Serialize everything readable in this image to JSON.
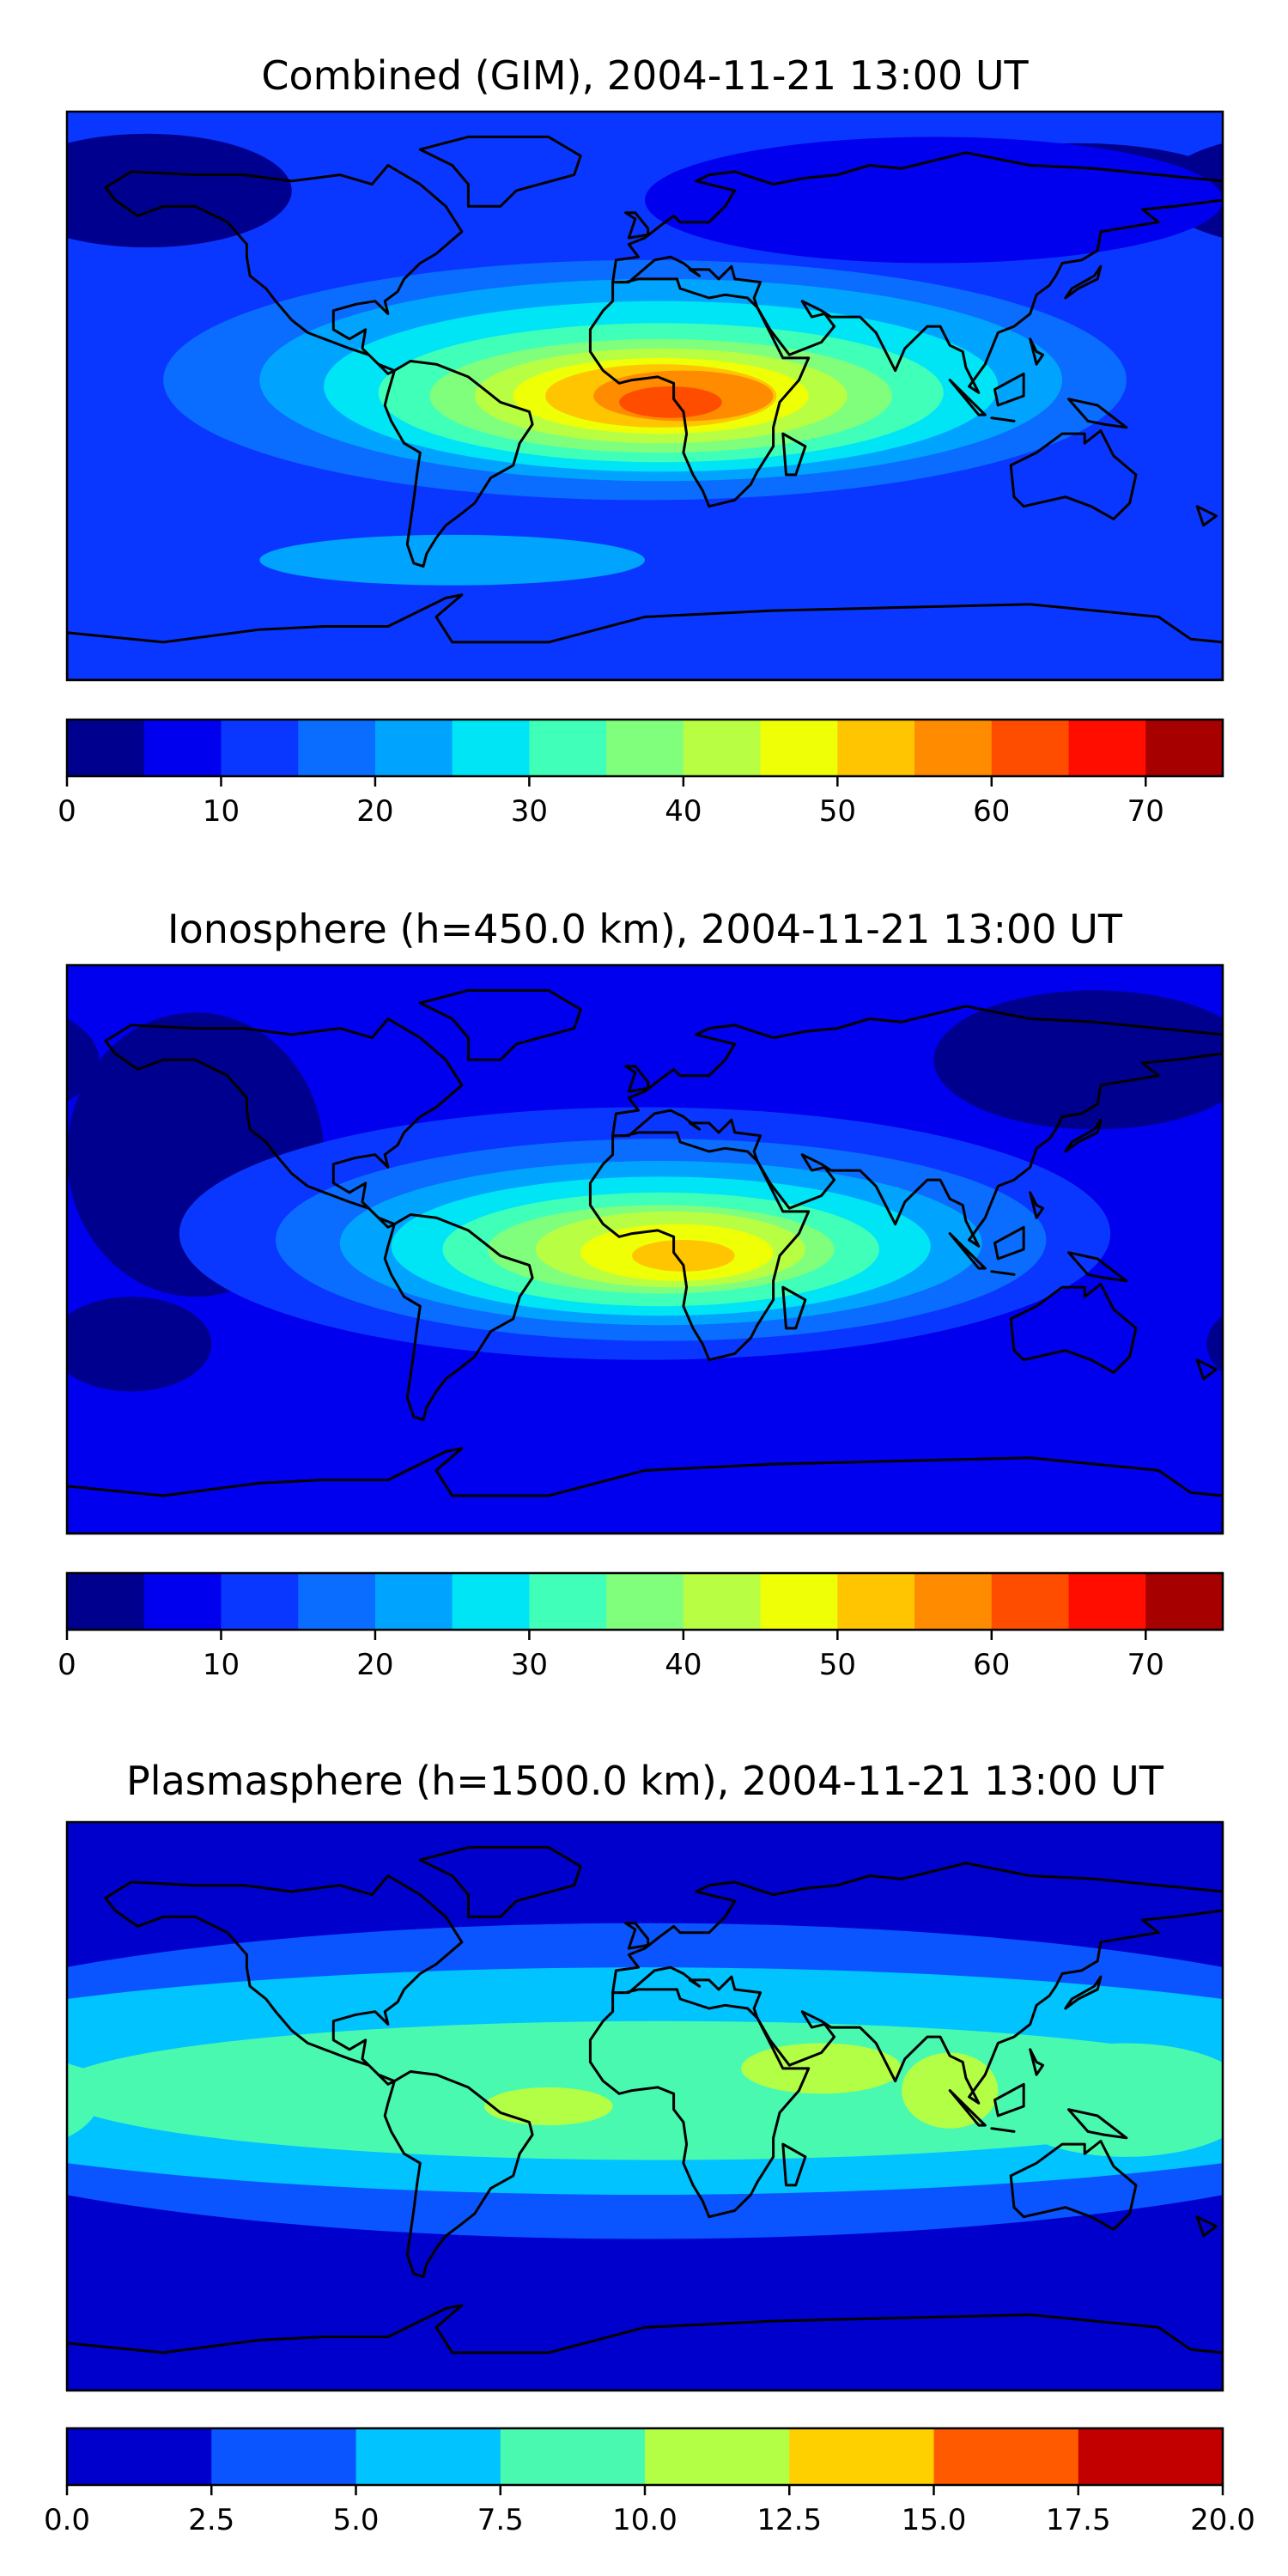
{
  "chart_data": [
    {
      "type": "heatmap",
      "title": "Combined (GIM), 2004-11-21 13:00 UT",
      "colorbar": {
        "levels": [
          0,
          5,
          10,
          15,
          20,
          25,
          30,
          35,
          40,
          45,
          50,
          55,
          60,
          65,
          70,
          75
        ],
        "colors": [
          "#00008f",
          "#0000ee",
          "#0a37ff",
          "#0a6dff",
          "#00a4ff",
          "#00e5f5",
          "#40ffb8",
          "#80ff7c",
          "#b8ff44",
          "#eeff06",
          "#ffc500",
          "#ff8b00",
          "#ff4d00",
          "#ff0e00",
          "#a60000"
        ],
        "ticks": [
          0,
          10,
          20,
          30,
          40,
          50,
          60,
          70
        ],
        "tick_labels": [
          "0",
          "10",
          "20",
          "30",
          "40",
          "50",
          "60",
          "70"
        ],
        "range": [
          0,
          75
        ]
      },
      "map": {
        "background_level": 10,
        "features": [
          {
            "level": 0,
            "lon": -155,
            "lat": 65,
            "rlon": 45,
            "rlat": 18
          },
          {
            "level": 0,
            "lon": 135,
            "lat": 65,
            "rlon": 50,
            "rlat": 15
          },
          {
            "level": 5,
            "lon": 90,
            "lat": 62,
            "rlon": 90,
            "rlat": 20
          },
          {
            "level": 20,
            "lon": -60,
            "lat": -52,
            "rlon": 60,
            "rlat": 8
          },
          {
            "level": 15,
            "lon": 0,
            "lat": 5,
            "rlon": 150,
            "rlat": 38
          },
          {
            "level": 20,
            "lon": 5,
            "lat": 5,
            "rlon": 125,
            "rlat": 32
          },
          {
            "level": 25,
            "lon": 5,
            "lat": 3,
            "rlon": 105,
            "rlat": 27
          },
          {
            "level": 30,
            "lon": 5,
            "lat": 1,
            "rlon": 88,
            "rlat": 22
          },
          {
            "level": 35,
            "lon": 5,
            "lat": 0,
            "rlon": 72,
            "rlat": 18
          },
          {
            "level": 40,
            "lon": 5,
            "lat": 0,
            "rlon": 58,
            "rlat": 15
          },
          {
            "level": 45,
            "lon": 5,
            "lat": 0,
            "rlon": 46,
            "rlat": 12
          },
          {
            "level": 50,
            "lon": 5,
            "lat": 0,
            "rlon": 36,
            "rlat": 10
          },
          {
            "level": 55,
            "lon": 12,
            "lat": 0,
            "rlon": 28,
            "rlat": 8
          },
          {
            "level": 60,
            "lon": 8,
            "lat": -2,
            "rlon": 16,
            "rlat": 5
          }
        ]
      }
    },
    {
      "type": "heatmap",
      "title": "Ionosphere  (h=450.0 km), 2004-11-21 13:00 UT",
      "colorbar": {
        "levels": [
          0,
          5,
          10,
          15,
          20,
          25,
          30,
          35,
          40,
          45,
          50,
          55,
          60,
          65,
          70,
          75
        ],
        "colors": [
          "#00008f",
          "#0000ee",
          "#0a37ff",
          "#0a6dff",
          "#00a4ff",
          "#00e5f5",
          "#40ffb8",
          "#80ff7c",
          "#b8ff44",
          "#eeff06",
          "#ffc500",
          "#ff8b00",
          "#ff4d00",
          "#ff0e00",
          "#a60000"
        ],
        "ticks": [
          0,
          10,
          20,
          30,
          40,
          50,
          60,
          70
        ],
        "tick_labels": [
          "0",
          "10",
          "20",
          "30",
          "40",
          "50",
          "60",
          "70"
        ],
        "range": [
          0,
          75
        ]
      },
      "map": {
        "background_level": 5,
        "features": [
          {
            "level": 0,
            "lon": -140,
            "lat": 30,
            "rlon": 40,
            "rlat": 45
          },
          {
            "level": 0,
            "lon": 140,
            "lat": 60,
            "rlon": 50,
            "rlat": 22
          },
          {
            "level": 0,
            "lon": -160,
            "lat": -30,
            "rlon": 25,
            "rlat": 15
          },
          {
            "level": 10,
            "lon": 0,
            "lat": 5,
            "rlon": 145,
            "rlat": 40
          },
          {
            "level": 15,
            "lon": 5,
            "lat": 3,
            "rlon": 120,
            "rlat": 32
          },
          {
            "level": 20,
            "lon": 5,
            "lat": 2,
            "rlon": 100,
            "rlat": 26
          },
          {
            "level": 25,
            "lon": 5,
            "lat": 1,
            "rlon": 84,
            "rlat": 22
          },
          {
            "level": 30,
            "lon": 5,
            "lat": 0,
            "rlon": 68,
            "rlat": 18
          },
          {
            "level": 35,
            "lon": 5,
            "lat": 0,
            "rlon": 54,
            "rlat": 14
          },
          {
            "level": 40,
            "lon": 8,
            "lat": 0,
            "rlon": 42,
            "rlat": 12
          },
          {
            "level": 45,
            "lon": 10,
            "lat": -1,
            "rlon": 30,
            "rlat": 9
          },
          {
            "level": 50,
            "lon": 12,
            "lat": -2,
            "rlon": 16,
            "rlat": 5
          }
        ]
      }
    },
    {
      "type": "heatmap",
      "title": "Plasmasphere (h=1500.0 km), 2004-11-21 13:00 UT",
      "colorbar": {
        "levels": [
          0.0,
          2.5,
          5.0,
          7.5,
          10.0,
          12.5,
          15.0,
          17.5,
          20.0
        ],
        "colors": [
          "#0000cd",
          "#0a55ff",
          "#00c3ff",
          "#49f9b0",
          "#b2ff46",
          "#ffd000",
          "#ff5a00",
          "#c20000"
        ],
        "ticks": [
          0.0,
          2.5,
          5.0,
          7.5,
          10.0,
          12.5,
          15.0,
          17.5,
          20.0
        ],
        "tick_labels": [
          "0.0",
          "2.5",
          "5.0",
          "7.5",
          "10.0",
          "12.5",
          "15.0",
          "17.5",
          "20.0"
        ],
        "range": [
          0,
          20
        ]
      },
      "map": {
        "background_level": 0,
        "features": [
          {
            "level": 2.5,
            "lon": 0,
            "lat": 8,
            "rlon": 260,
            "rlat": 50
          },
          {
            "level": 5,
            "lon": 0,
            "lat": 8,
            "rlon": 260,
            "rlat": 36
          },
          {
            "level": 7.5,
            "lon": 5,
            "lat": 5,
            "rlon": 190,
            "rlat": 22
          },
          {
            "level": 7.5,
            "lon": 150,
            "lat": 2,
            "rlon": 40,
            "rlat": 18
          },
          {
            "level": 0,
            "lon": 80,
            "lat": -45,
            "rlon": 30,
            "rlat": 5
          },
          {
            "level": 10,
            "lon": -30,
            "lat": 0,
            "rlon": 20,
            "rlat": 6
          },
          {
            "level": 10,
            "lon": 55,
            "lat": 12,
            "rlon": 25,
            "rlat": 8
          },
          {
            "level": 10,
            "lon": 95,
            "lat": 5,
            "rlon": 15,
            "rlat": 12
          }
        ]
      }
    }
  ]
}
